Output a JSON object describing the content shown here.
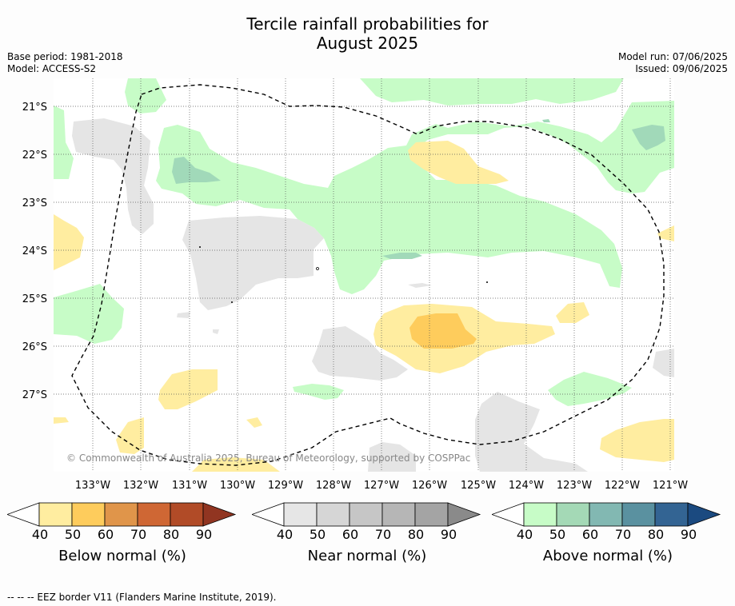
{
  "title": {
    "line1": "Tercile rainfall probabilities for",
    "line2": "August 2025"
  },
  "info": {
    "base_period": "Base period: 1981-2018",
    "model": "Model: ACCESS-S2",
    "model_run": "Model run: 07/06/2025",
    "issued": "Issued: 09/06/2025"
  },
  "map": {
    "lat_labels": [
      "21°S",
      "22°S",
      "23°S",
      "24°S",
      "25°S",
      "26°S",
      "27°S"
    ],
    "lon_labels": [
      "133°W",
      "132°W",
      "131°W",
      "130°W",
      "129°W",
      "128°W",
      "127°W",
      "126°W",
      "125°W",
      "124°W",
      "123°W",
      "122°W",
      "121°W"
    ],
    "copyright": "© Commonwealth of Australia 2025, Bureau of Meteorology, supported by COSPPac",
    "colors": {
      "below_40": "#ffeda0",
      "below_50": "#fecc5c",
      "near_40": "#e5e5e5",
      "above_40": "#c7fcc7",
      "above_50": "#a1d9b9",
      "border": "#000000"
    }
  },
  "colorbars": [
    {
      "label": "Below normal (%)",
      "ticks": [
        "40",
        "50",
        "60",
        "70",
        "80",
        "90"
      ],
      "colors": [
        "#ffeda0",
        "#fecc5c",
        "#e0954a",
        "#cf6734",
        "#b14b27",
        "#913521"
      ]
    },
    {
      "label": "Near normal (%)",
      "ticks": [
        "40",
        "50",
        "60",
        "70",
        "80",
        "90"
      ],
      "colors": [
        "#e6e6e6",
        "#d6d6d6",
        "#c6c6c6",
        "#b6b6b6",
        "#a4a4a4",
        "#8a8a8a"
      ]
    },
    {
      "label": "Above normal (%)",
      "ticks": [
        "40",
        "50",
        "60",
        "70",
        "80",
        "90"
      ],
      "colors": [
        "#c7fcc7",
        "#a4d9b6",
        "#82b8b2",
        "#5a91a0",
        "#336493",
        "#1b4a80"
      ]
    }
  ],
  "footer": "--  --  -- EEZ border V11 (Flanders Marine Institute, 2019)."
}
